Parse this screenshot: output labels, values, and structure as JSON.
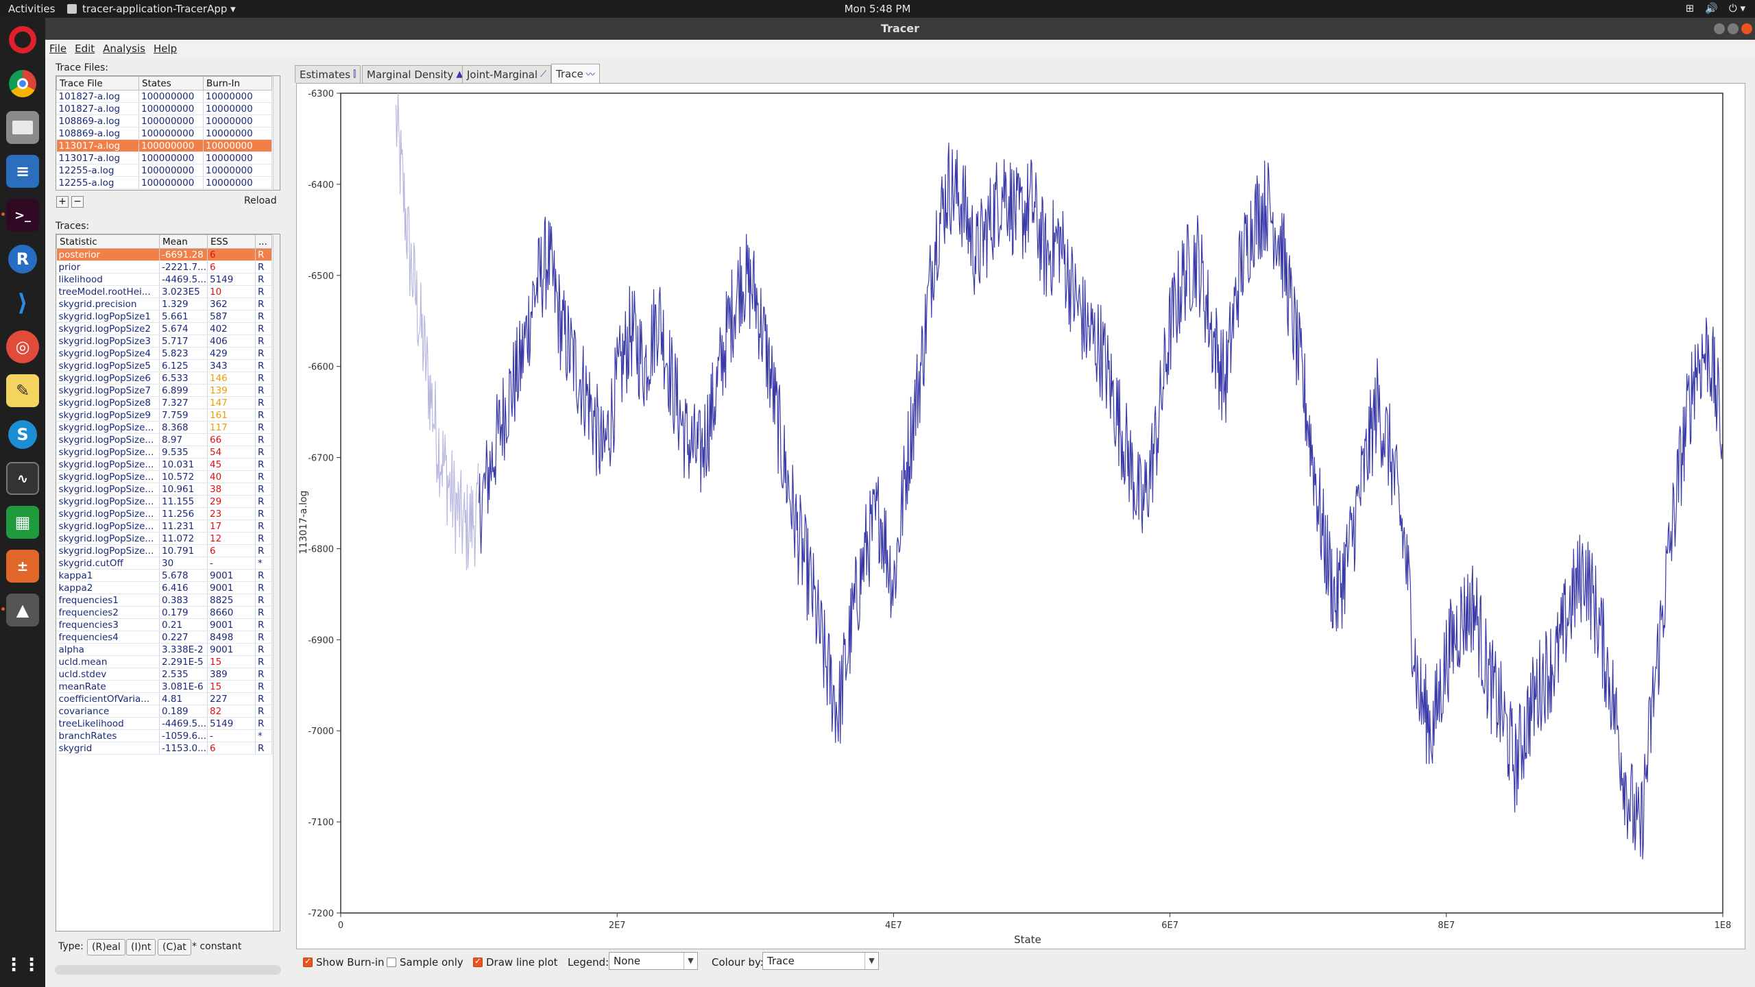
{
  "topbar": {
    "activities": "Activities",
    "app_name": "tracer-application-TracerApp ▾",
    "clock": "Mon  5:48 PM",
    "tray": [
      "⊞",
      "🔊",
      "⏻ ▾"
    ]
  },
  "window": {
    "title": "Tracer"
  },
  "menu": [
    "File",
    "Edit",
    "Analysis",
    "Help"
  ],
  "trace_files": {
    "label": "Trace Files:",
    "headers": [
      "Trace File",
      "States",
      "Burn-In"
    ],
    "rows": [
      [
        "101827-a.log",
        "100000000",
        "10000000"
      ],
      [
        "101827-a.log",
        "100000000",
        "10000000"
      ],
      [
        "108869-a.log",
        "100000000",
        "10000000"
      ],
      [
        "108869-a.log",
        "100000000",
        "10000000"
      ],
      [
        "113017-a.log",
        "100000000",
        "10000000"
      ],
      [
        "113017-a.log",
        "100000000",
        "10000000"
      ],
      [
        "12255-a.log",
        "100000000",
        "10000000"
      ],
      [
        "12255-a.log",
        "100000000",
        "10000000"
      ]
    ],
    "selected": 4,
    "add": "+",
    "remove": "−",
    "reload": "Reload"
  },
  "traces": {
    "label": "Traces:",
    "headers": [
      "Statistic",
      "Mean",
      "ESS",
      "..."
    ],
    "selected": 0,
    "rows": [
      [
        "posterior",
        "-6691.28",
        "6",
        "R",
        "red"
      ],
      [
        "prior",
        "-2221.7...",
        "6",
        "R",
        "red"
      ],
      [
        "likelihood",
        "-4469.5...",
        "5149",
        "R",
        ""
      ],
      [
        "treeModel.rootHei...",
        "3.023E5",
        "10",
        "R",
        "red"
      ],
      [
        "skygrid.precision",
        "1.329",
        "362",
        "R",
        ""
      ],
      [
        "skygrid.logPopSize1",
        "5.661",
        "587",
        "R",
        ""
      ],
      [
        "skygrid.logPopSize2",
        "5.674",
        "402",
        "R",
        ""
      ],
      [
        "skygrid.logPopSize3",
        "5.717",
        "406",
        "R",
        ""
      ],
      [
        "skygrid.logPopSize4",
        "5.823",
        "429",
        "R",
        ""
      ],
      [
        "skygrid.logPopSize5",
        "6.125",
        "343",
        "R",
        ""
      ],
      [
        "skygrid.logPopSize6",
        "6.533",
        "146",
        "R",
        "orange"
      ],
      [
        "skygrid.logPopSize7",
        "6.899",
        "139",
        "R",
        "orange"
      ],
      [
        "skygrid.logPopSize8",
        "7.327",
        "147",
        "R",
        "orange"
      ],
      [
        "skygrid.logPopSize9",
        "7.759",
        "161",
        "R",
        "orange"
      ],
      [
        "skygrid.logPopSize...",
        "8.368",
        "117",
        "R",
        "orange"
      ],
      [
        "skygrid.logPopSize...",
        "8.97",
        "66",
        "R",
        "red"
      ],
      [
        "skygrid.logPopSize...",
        "9.535",
        "54",
        "R",
        "red"
      ],
      [
        "skygrid.logPopSize...",
        "10.031",
        "45",
        "R",
        "red"
      ],
      [
        "skygrid.logPopSize...",
        "10.572",
        "40",
        "R",
        "red"
      ],
      [
        "skygrid.logPopSize...",
        "10.961",
        "38",
        "R",
        "red"
      ],
      [
        "skygrid.logPopSize...",
        "11.155",
        "29",
        "R",
        "red"
      ],
      [
        "skygrid.logPopSize...",
        "11.256",
        "23",
        "R",
        "red"
      ],
      [
        "skygrid.logPopSize...",
        "11.231",
        "17",
        "R",
        "red"
      ],
      [
        "skygrid.logPopSize...",
        "11.072",
        "12",
        "R",
        "red"
      ],
      [
        "skygrid.logPopSize...",
        "10.791",
        "6",
        "R",
        "red"
      ],
      [
        "skygrid.cutOff",
        "30",
        "-",
        "*",
        ""
      ],
      [
        "kappa1",
        "5.678",
        "9001",
        "R",
        ""
      ],
      [
        "kappa2",
        "6.416",
        "9001",
        "R",
        ""
      ],
      [
        "frequencies1",
        "0.383",
        "8825",
        "R",
        ""
      ],
      [
        "frequencies2",
        "0.179",
        "8660",
        "R",
        ""
      ],
      [
        "frequencies3",
        "0.21",
        "9001",
        "R",
        ""
      ],
      [
        "frequencies4",
        "0.227",
        "8498",
        "R",
        ""
      ],
      [
        "alpha",
        "3.338E-2",
        "9001",
        "R",
        ""
      ],
      [
        "ucld.mean",
        "2.291E-5",
        "15",
        "R",
        "red"
      ],
      [
        "ucld.stdev",
        "2.535",
        "389",
        "R",
        ""
      ],
      [
        "meanRate",
        "3.081E-6",
        "15",
        "R",
        "red"
      ],
      [
        "coefficientOfVaria...",
        "4.81",
        "227",
        "R",
        ""
      ],
      [
        "covariance",
        "0.189",
        "82",
        "R",
        "red"
      ],
      [
        "treeLikelihood",
        "-4469.5...",
        "5149",
        "R",
        ""
      ],
      [
        "branchRates",
        "-1059.6...",
        "-",
        "*",
        ""
      ],
      [
        "skygrid",
        "-1153.0...",
        "6",
        "R",
        "red"
      ]
    ]
  },
  "type_legend": {
    "label": "Type:",
    "real": "(R)eal",
    "int": "(I)nt",
    "cat": "(C)at",
    "constant": "* constant"
  },
  "tabs": [
    {
      "label": "Estimates",
      "icon": "estimates-icon"
    },
    {
      "label": "Marginal Density",
      "icon": "density-icon"
    },
    {
      "label": "Joint-Marginal",
      "icon": "joint-icon"
    },
    {
      "label": "Trace",
      "icon": "trace-icon"
    }
  ],
  "active_tab": 3,
  "controls": {
    "show_burnin": "Show Burn-in",
    "show_burnin_checked": true,
    "sample_only": "Sample only",
    "sample_only_checked": false,
    "draw_line_plot": "Draw line plot",
    "draw_line_plot_checked": true,
    "legend_label": "Legend:",
    "legend_value": "None",
    "colour_label": "Colour by:",
    "colour_value": "Trace"
  },
  "chart_data": {
    "type": "line",
    "xlabel": "State",
    "ylabel": "113017-a.log",
    "xlim": [
      0,
      100000000
    ],
    "ylim": [
      -7200,
      -6300
    ],
    "x_ticks": [
      0,
      20000000,
      40000000,
      60000000,
      80000000,
      100000000
    ],
    "x_tick_labels": [
      "0",
      "2E7",
      "4E7",
      "6E7",
      "8E7",
      "1E8"
    ],
    "y_ticks": [
      -6300,
      -6400,
      -6500,
      -6600,
      -6700,
      -6800,
      -6900,
      -7000,
      -7100,
      -7200
    ],
    "y_tick_labels": [
      "-6300",
      "-6400",
      "-6500",
      "-6600",
      "-6700",
      "-6800",
      "-6900",
      "-7000",
      "-7100",
      "-7200"
    ],
    "burnin": 10000000,
    "line_color": "#3a3aa8",
    "burnin_color": "#b8b8e0",
    "series": [
      {
        "x": [
          4000000,
          5000000,
          6000000,
          7000000,
          8000000,
          9000000,
          10000000,
          11000000,
          12000000,
          13000000,
          14000000,
          15000000,
          16000000,
          17000000,
          18000000,
          19000000,
          20000000,
          21000000,
          22000000,
          23000000,
          24000000,
          25000000,
          26000000,
          27000000,
          28000000,
          29000000,
          30000000,
          31000000,
          32000000,
          33000000,
          34000000,
          35000000,
          36000000,
          37000000,
          38000000,
          39000000,
          40000000,
          41000000,
          42000000,
          43000000,
          44000000,
          45000000,
          46000000,
          47000000,
          48000000,
          49000000,
          50000000,
          51000000,
          52000000,
          53000000,
          54000000,
          55000000,
          56000000,
          57000000,
          58000000,
          59000000,
          60000000,
          61000000,
          62000000,
          63000000,
          64000000,
          65000000,
          66000000,
          67000000,
          68000000,
          69000000,
          70000000,
          71000000,
          72000000,
          73000000,
          74000000,
          75000000,
          76000000,
          77000000,
          78000000,
          79000000,
          80000000,
          81000000,
          82000000,
          83000000,
          84000000,
          85000000,
          86000000,
          87000000,
          88000000,
          89000000,
          90000000,
          91000000,
          92000000,
          93000000,
          94000000,
          95000000,
          96000000,
          97000000,
          98000000,
          99000000,
          100000000
        ],
        "y": [
          -6330,
          -6480,
          -6580,
          -6680,
          -6740,
          -6780,
          -6760,
          -6700,
          -6640,
          -6600,
          -6520,
          -6480,
          -6560,
          -6600,
          -6640,
          -6700,
          -6620,
          -6560,
          -6600,
          -6540,
          -6620,
          -6680,
          -6700,
          -6640,
          -6560,
          -6500,
          -6520,
          -6600,
          -6700,
          -6780,
          -6840,
          -6920,
          -6980,
          -6880,
          -6800,
          -6760,
          -6840,
          -6700,
          -6600,
          -6460,
          -6400,
          -6420,
          -6480,
          -6440,
          -6400,
          -6440,
          -6420,
          -6480,
          -6460,
          -6520,
          -6560,
          -6580,
          -6640,
          -6700,
          -6760,
          -6680,
          -6560,
          -6500,
          -6480,
          -6560,
          -6620,
          -6500,
          -6440,
          -6420,
          -6460,
          -6560,
          -6660,
          -6780,
          -6860,
          -6800,
          -6720,
          -6640,
          -6700,
          -6800,
          -6960,
          -7000,
          -6920,
          -6880,
          -6860,
          -6940,
          -6980,
          -7040,
          -6980,
          -6940,
          -6920,
          -6860,
          -6820,
          -6880,
          -6960,
          -7060,
          -7120,
          -6960,
          -6820,
          -6700,
          -6600,
          -6580,
          -6680
        ]
      }
    ]
  }
}
